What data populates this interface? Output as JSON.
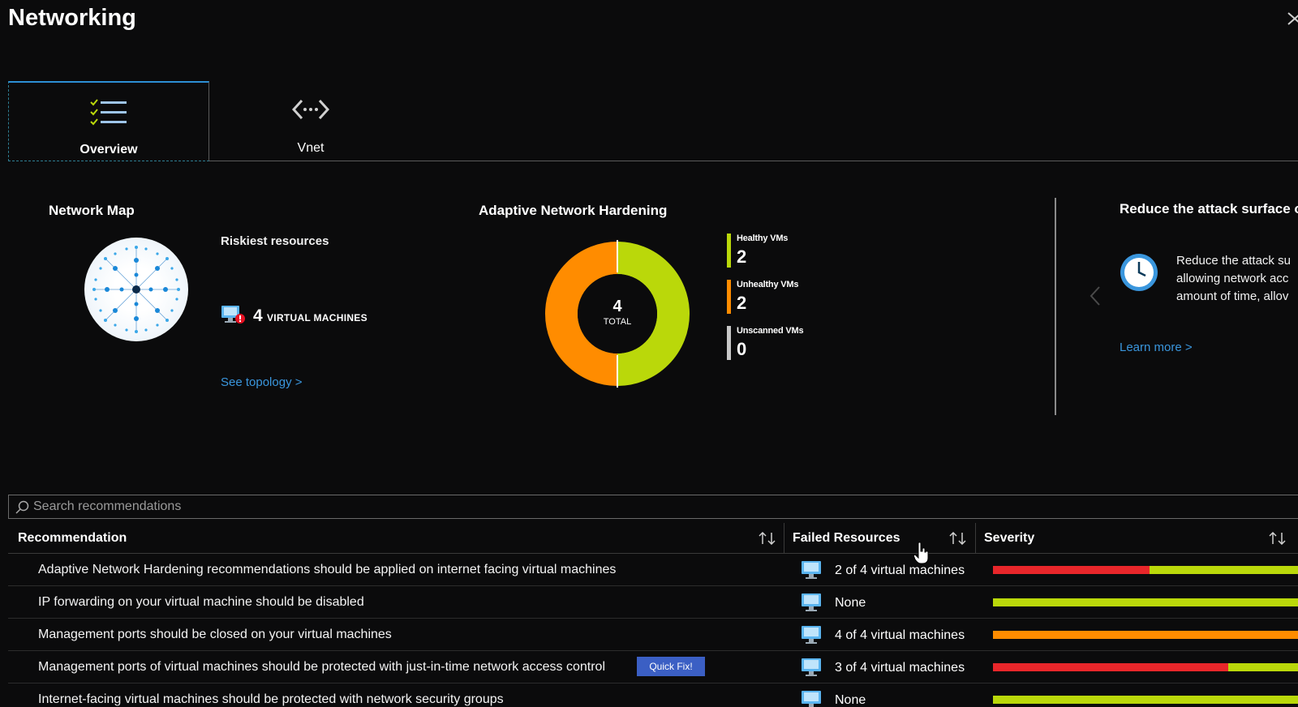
{
  "page": {
    "title": "Networking"
  },
  "tabs": [
    {
      "label": "Overview",
      "icon": "checklist-icon",
      "selected": true
    },
    {
      "label": "Vnet",
      "icon": "code-arrows-icon",
      "selected": false
    }
  ],
  "network_map": {
    "title": "Network Map",
    "riskiest_title": "Riskiest resources",
    "vm_count": "4",
    "vm_label": "VIRTUAL MACHINES",
    "link": "See topology >"
  },
  "hardening": {
    "title": "Adaptive Network Hardening",
    "total_value": "4",
    "total_label": "TOTAL",
    "legend": [
      {
        "label": "Healthy VMs",
        "value": "2",
        "color": "#bad80a"
      },
      {
        "label": "Unhealthy VMs",
        "value": "2",
        "color": "#ff8c00"
      },
      {
        "label": "Unscanned VMs",
        "value": "0",
        "color": "#c8c8c8"
      }
    ]
  },
  "reduce_panel": {
    "title": "Reduce the attack surface o",
    "lines": [
      "Reduce the attack su",
      "allowing network acc",
      "amount of time, allov"
    ],
    "link": "Learn more >"
  },
  "search": {
    "placeholder": "Search recommendations"
  },
  "table": {
    "headers": {
      "recommendation": "Recommendation",
      "failed": "Failed Resources",
      "severity": "Severity"
    },
    "rows": [
      {
        "recommendation": "Adaptive Network Hardening recommendations should be applied on internet facing virtual machines",
        "failed": "2 of 4 virtual machines",
        "severity": [
          {
            "color": "#e8262a",
            "fraction": 0.5
          },
          {
            "color": "#bad80a",
            "fraction": 0.5
          }
        ]
      },
      {
        "recommendation": "IP forwarding on your virtual machine should be disabled",
        "failed": "None",
        "severity": [
          {
            "color": "#bad80a",
            "fraction": 1.0
          }
        ]
      },
      {
        "recommendation": "Management ports should be closed on your virtual machines",
        "failed": "4 of 4 virtual machines",
        "severity": [
          {
            "color": "#ff8c00",
            "fraction": 1.0
          }
        ]
      },
      {
        "recommendation": "Management ports of virtual machines should be protected with just-in-time network access control",
        "quick_fix": "Quick Fix!",
        "failed": "3 of 4 virtual machines",
        "severity": [
          {
            "color": "#e8262a",
            "fraction": 0.75
          },
          {
            "color": "#bad80a",
            "fraction": 0.25
          }
        ]
      },
      {
        "recommendation": "Internet-facing virtual machines should be protected with network security groups",
        "failed": "None",
        "severity": [
          {
            "color": "#bad80a",
            "fraction": 1.0
          }
        ]
      }
    ]
  }
}
